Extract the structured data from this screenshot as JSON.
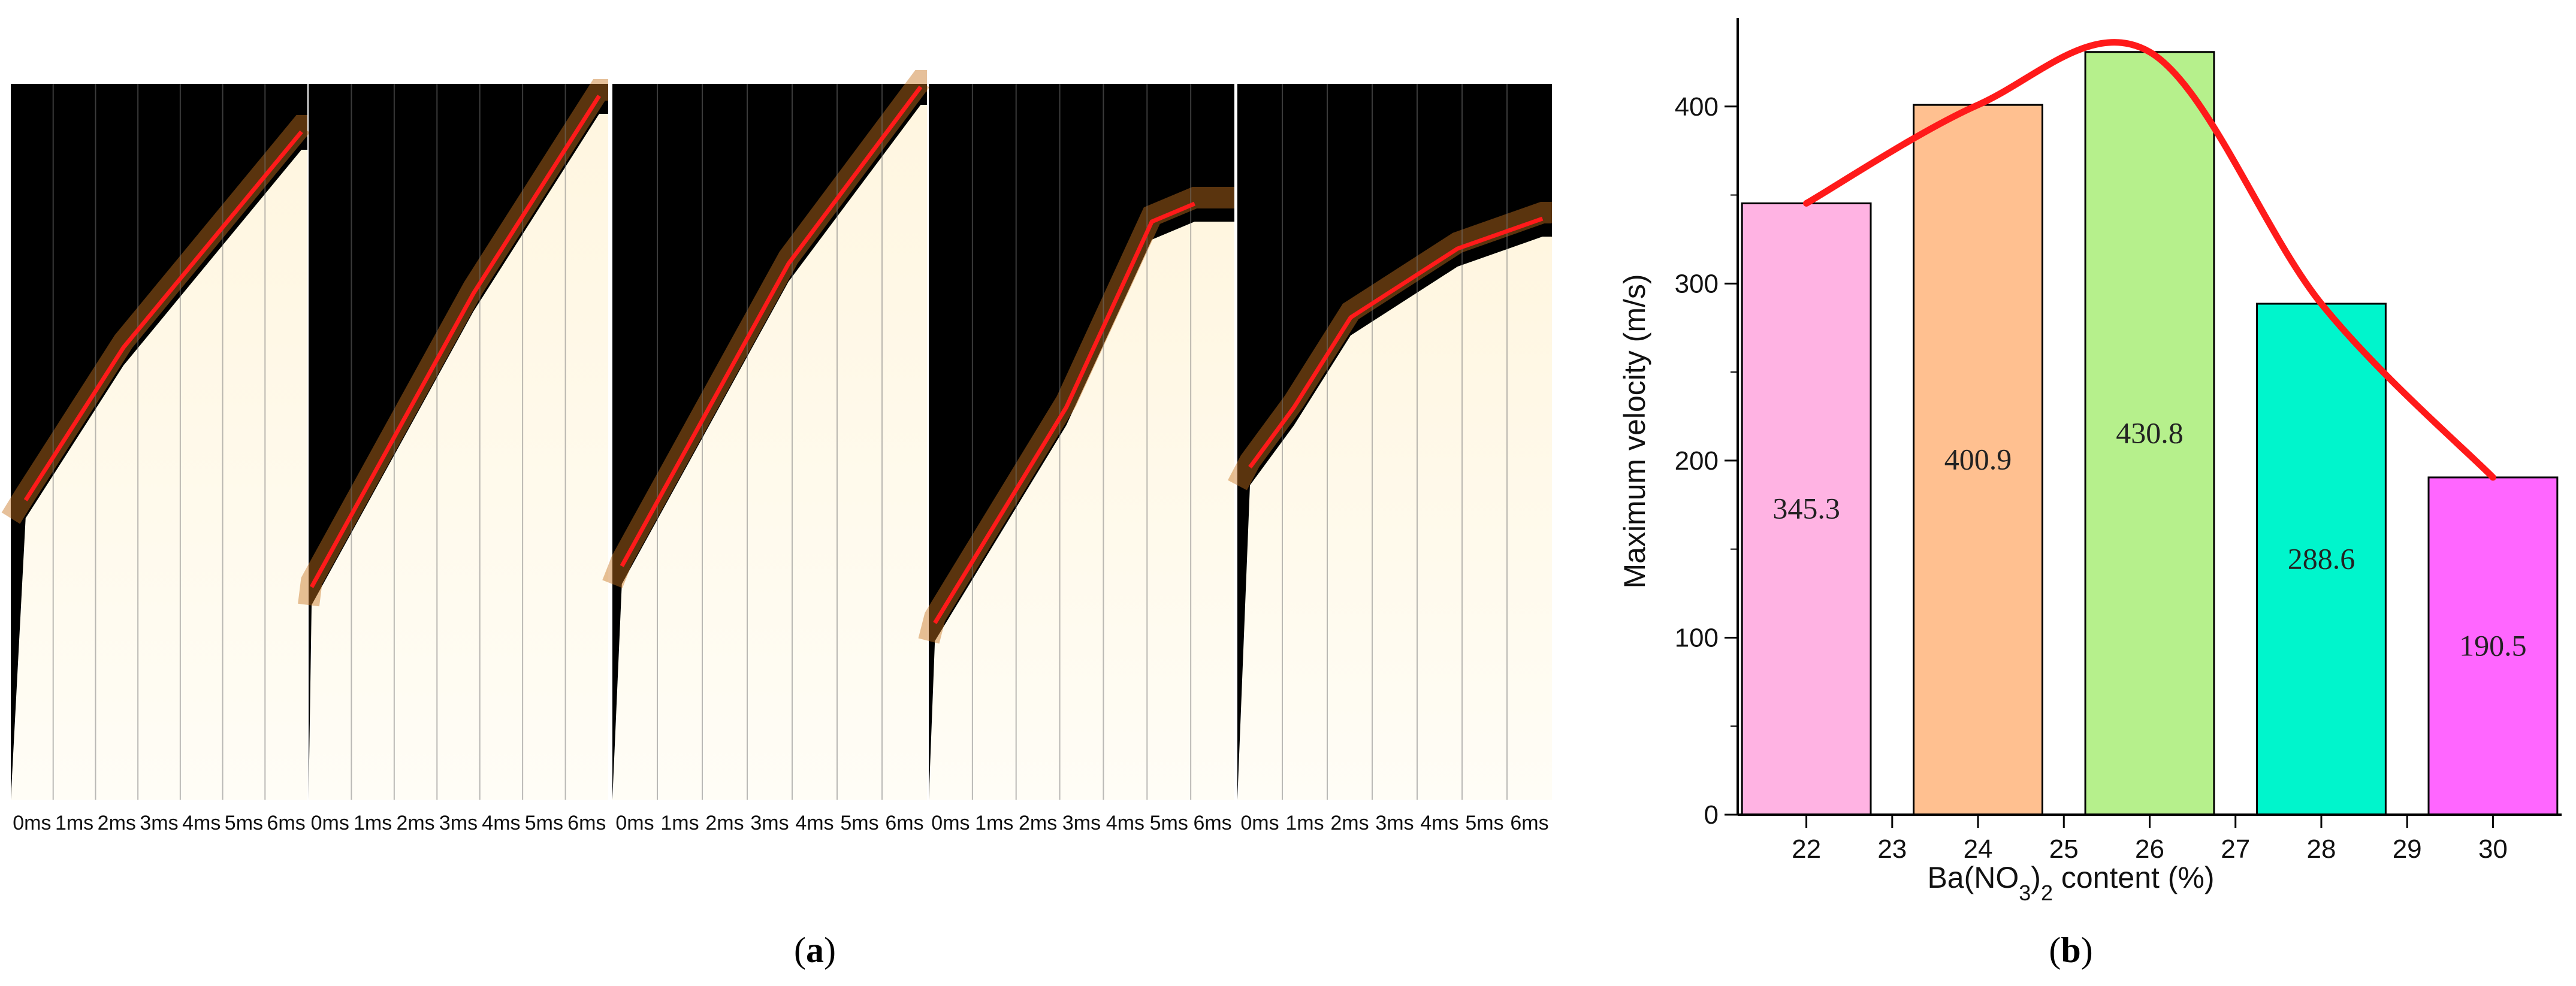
{
  "panel_a": {
    "label_letter": "a",
    "strips": [
      {
        "time_labels": [
          "0ms",
          "1ms",
          "2ms",
          "3ms",
          "4ms",
          "5ms",
          "6ms"
        ]
      },
      {
        "time_labels": [
          "0ms",
          "1ms",
          "2ms",
          "3ms",
          "4ms",
          "5ms",
          "6ms"
        ]
      },
      {
        "time_labels": [
          "0ms",
          "1ms",
          "2ms",
          "3ms",
          "4ms",
          "5ms",
          "6ms"
        ]
      },
      {
        "time_labels": [
          "0ms",
          "1ms",
          "2ms",
          "3ms",
          "4ms",
          "5ms",
          "6ms"
        ]
      },
      {
        "time_labels": [
          "0ms",
          "1ms",
          "2ms",
          "3ms",
          "4ms",
          "5ms",
          "6ms"
        ]
      }
    ],
    "colors": {
      "flame_front_line": "#ff1a1a",
      "background_dark": "#000000",
      "flame_light": "#fffaf0"
    }
  },
  "panel_b": {
    "label_letter": "b"
  },
  "chart_data": {
    "type": "bar",
    "categories": [
      22,
      24,
      26,
      28,
      30
    ],
    "values": [
      345.3,
      400.9,
      430.8,
      288.6,
      190.5
    ],
    "value_labels": [
      "345.3",
      "400.9",
      "430.8",
      "288.6",
      "190.5"
    ],
    "bar_colors": [
      "#ffb3e3",
      "#ffc090",
      "#b6f08c",
      "#00f5cc",
      "#ff66ff"
    ],
    "trend_line_color": "#ff1a1a",
    "xlabel_prefix": "Ba(NO",
    "xlabel_sub1": "3",
    "xlabel_mid": ")",
    "xlabel_sub2": "2",
    "xlabel_suffix": " content (%)",
    "ylabel": "Maximum velocity (m/s)",
    "xlim": [
      21.2,
      30.8
    ],
    "ylim": [
      0,
      450
    ],
    "xticks": [
      22,
      23,
      24,
      25,
      26,
      27,
      28,
      29,
      30
    ],
    "yticks": [
      0,
      100,
      200,
      300,
      400
    ],
    "grid": false,
    "legend": "none"
  }
}
